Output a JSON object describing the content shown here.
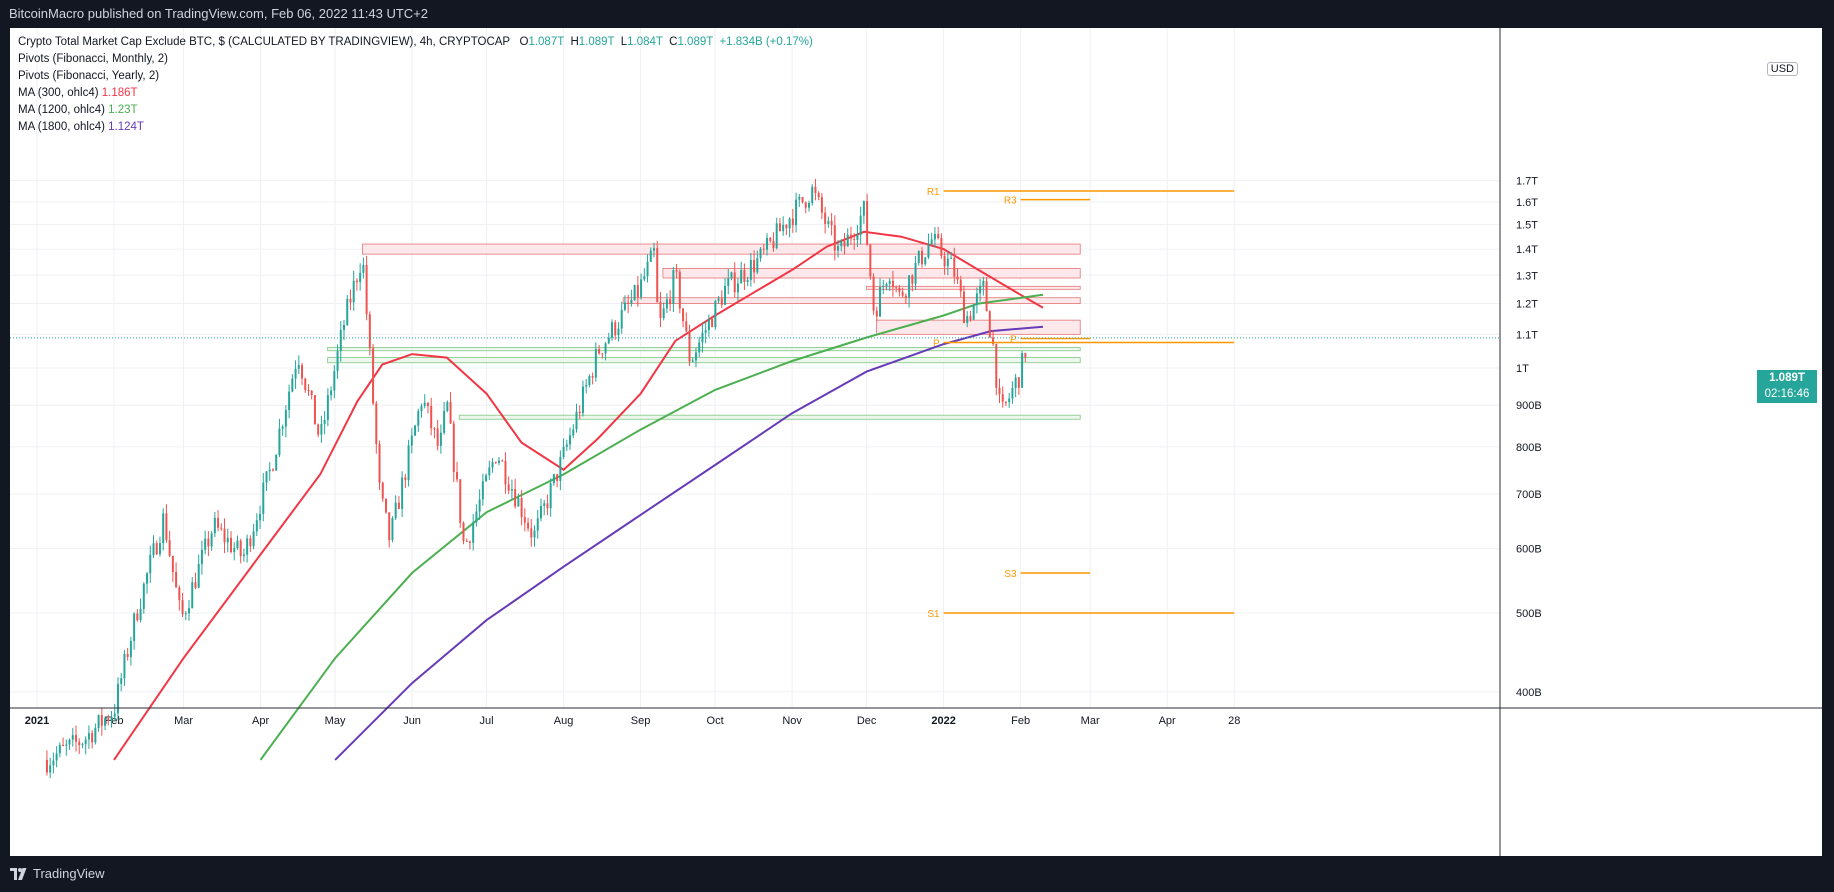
{
  "header": {
    "publisher_line": "BitcoinMacro published on TradingView.com, Feb 06, 2022 11:43 UTC+2"
  },
  "footer": {
    "logo_text": "TradingView"
  },
  "legend": {
    "symbol": "Crypto Total Market Cap Exclude BTC, $ (CALCULATED BY TRADINGVIEW), 4h, CRYPTOCAP",
    "ohlc": {
      "o_label": "O",
      "o": "1.087T",
      "h_label": "H",
      "h": "1.089T",
      "l_label": "L",
      "l": "1.084T",
      "c_label": "C",
      "c": "1.089T",
      "change": "+1.834B (+0.17%)"
    },
    "indicators": [
      {
        "name": "Pivots (Fibonacci, Monthly, 2)",
        "value": ""
      },
      {
        "name": "Pivots (Fibonacci, Yearly, 2)",
        "value": ""
      },
      {
        "name": "MA (300, ohlc4)",
        "value": "1.186T",
        "color": "#f23645"
      },
      {
        "name": "MA (1200, ohlc4)",
        "value": "1.23T",
        "color": "#4caf50"
      },
      {
        "name": "MA (1800, ohlc4)",
        "value": "1.124T",
        "color": "#673ab7"
      }
    ]
  },
  "scale": {
    "currency": "USD",
    "last_price": "1.089T",
    "countdown": "02:16:46"
  },
  "colors": {
    "up": "#26a69a",
    "down": "#ef5350",
    "ma300": "#f23645",
    "ma1200": "#4caf50",
    "ma1800": "#673ab7",
    "pivot": "#ff9800",
    "resistance_zone_fill": "#fce4e6",
    "resistance_zone_stroke": "#e57373",
    "support_zone_fill": "#e8f5e9",
    "support_zone_stroke": "#81c784"
  },
  "chart_data": {
    "type": "candlestick",
    "title": "Crypto Total Market Cap Exclude BTC, $ (CALCULATED BY TRADINGVIEW), 4h, CRYPTOCAP",
    "xlabel": "",
    "ylabel": "",
    "y_scale": "log",
    "ylim": [
      "330B",
      "1.75T"
    ],
    "y_ticks": [
      "400B",
      "500B",
      "600B",
      "700B",
      "800B",
      "900B",
      "1T",
      "1.1T",
      "1.2T",
      "1.3T",
      "1.4T",
      "1.5T",
      "1.6T",
      "1.7T"
    ],
    "y_tick_values": [
      400,
      500,
      600,
      700,
      800,
      900,
      1000,
      1100,
      1200,
      1300,
      1400,
      1500,
      1600,
      1700
    ],
    "x_ticks": [
      "2021",
      "Feb",
      "Mar",
      "Apr",
      "May",
      "Jun",
      "Jul",
      "Aug",
      "Sep",
      "Oct",
      "Nov",
      "Dec",
      "2022",
      "Feb",
      "Mar",
      "Apr",
      "28"
    ],
    "x_tick_dates": [
      "2021-01-01",
      "2021-02-01",
      "2021-03-01",
      "2021-04-01",
      "2021-05-01",
      "2021-06-01",
      "2021-07-01",
      "2021-08-01",
      "2021-09-01",
      "2021-10-01",
      "2021-11-01",
      "2021-12-01",
      "2022-01-01",
      "2022-02-01",
      "2022-03-01",
      "2022-04-01",
      "2022-04-28"
    ],
    "grid": true,
    "price_path": [
      [
        "2021-01-05",
        330
      ],
      [
        "2021-01-20",
        350
      ],
      [
        "2021-02-01",
        380
      ],
      [
        "2021-02-10",
        500
      ],
      [
        "2021-02-21",
        655
      ],
      [
        "2021-02-28",
        490
      ],
      [
        "2021-03-13",
        640
      ],
      [
        "2021-03-25",
        585
      ],
      [
        "2021-04-05",
        750
      ],
      [
        "2021-04-16",
        1045
      ],
      [
        "2021-04-25",
        815
      ],
      [
        "2021-05-05",
        1150
      ],
      [
        "2021-05-12",
        1378
      ],
      [
        "2021-05-19",
        700
      ],
      [
        "2021-05-23",
        615
      ],
      [
        "2021-06-05",
        920
      ],
      [
        "2021-06-12",
        790
      ],
      [
        "2021-06-15",
        905
      ],
      [
        "2021-06-22",
        600
      ],
      [
        "2021-07-05",
        790
      ],
      [
        "2021-07-20",
        620
      ],
      [
        "2021-08-01",
        780
      ],
      [
        "2021-08-15",
        1050
      ],
      [
        "2021-08-31",
        1240
      ],
      [
        "2021-09-07",
        1395
      ],
      [
        "2021-09-08",
        1110
      ],
      [
        "2021-09-15",
        1300
      ],
      [
        "2021-09-21",
        1020
      ],
      [
        "2021-10-05",
        1250
      ],
      [
        "2021-10-20",
        1370
      ],
      [
        "2021-10-30",
        1520
      ],
      [
        "2021-11-09",
        1655
      ],
      [
        "2021-11-16",
        1470
      ],
      [
        "2021-11-20",
        1380
      ],
      [
        "2021-11-30",
        1560
      ],
      [
        "2021-12-04",
        1170
      ],
      [
        "2021-12-10",
        1330
      ],
      [
        "2021-12-14",
        1220
      ],
      [
        "2021-12-27",
        1440
      ],
      [
        "2022-01-05",
        1320
      ],
      [
        "2022-01-10",
        1150
      ],
      [
        "2022-01-17",
        1250
      ],
      [
        "2022-01-21",
        1060
      ],
      [
        "2022-01-24",
        870
      ],
      [
        "2022-02-01",
        990
      ],
      [
        "2022-02-04",
        1089
      ]
    ],
    "series": [
      {
        "name": "MA (300, ohlc4)",
        "color": "#f23645",
        "last": "1.186T",
        "points": [
          [
            "2021-02-01",
            330
          ],
          [
            "2021-03-01",
            440
          ],
          [
            "2021-04-01",
            590
          ],
          [
            "2021-04-25",
            740
          ],
          [
            "2021-05-10",
            910
          ],
          [
            "2021-05-20",
            1010
          ],
          [
            "2021-06-01",
            1040
          ],
          [
            "2021-06-15",
            1030
          ],
          [
            "2021-07-01",
            930
          ],
          [
            "2021-07-15",
            810
          ],
          [
            "2021-08-01",
            750
          ],
          [
            "2021-08-15",
            820
          ],
          [
            "2021-09-01",
            930
          ],
          [
            "2021-09-15",
            1080
          ],
          [
            "2021-10-01",
            1160
          ],
          [
            "2021-10-15",
            1230
          ],
          [
            "2021-11-01",
            1320
          ],
          [
            "2021-11-15",
            1410
          ],
          [
            "2021-11-30",
            1470
          ],
          [
            "2021-12-15",
            1450
          ],
          [
            "2022-01-01",
            1400
          ],
          [
            "2022-01-15",
            1320
          ],
          [
            "2022-02-01",
            1230
          ],
          [
            "2022-02-10",
            1186
          ]
        ]
      },
      {
        "name": "MA (1200, ohlc4)",
        "color": "#4caf50",
        "last": "1.23T",
        "points": [
          [
            "2021-04-01",
            330
          ],
          [
            "2021-05-01",
            440
          ],
          [
            "2021-06-01",
            560
          ],
          [
            "2021-07-01",
            665
          ],
          [
            "2021-08-01",
            740
          ],
          [
            "2021-09-01",
            840
          ],
          [
            "2021-10-01",
            940
          ],
          [
            "2021-11-01",
            1020
          ],
          [
            "2021-12-01",
            1090
          ],
          [
            "2022-01-01",
            1160
          ],
          [
            "2022-01-15",
            1200
          ],
          [
            "2022-02-10",
            1230
          ]
        ]
      },
      {
        "name": "MA (1800, ohlc4)",
        "color": "#673ab7",
        "last": "1.124T",
        "points": [
          [
            "2021-05-01",
            330
          ],
          [
            "2021-06-01",
            410
          ],
          [
            "2021-07-01",
            490
          ],
          [
            "2021-08-01",
            570
          ],
          [
            "2021-09-01",
            660
          ],
          [
            "2021-10-01",
            760
          ],
          [
            "2021-11-01",
            880
          ],
          [
            "2021-12-01",
            990
          ],
          [
            "2022-01-01",
            1070
          ],
          [
            "2022-01-20",
            1110
          ],
          [
            "2022-02-10",
            1124
          ]
        ]
      }
    ],
    "pivots": [
      {
        "label": "R1",
        "value": 1650,
        "from": "2022-01-01",
        "to": "2022-04-28"
      },
      {
        "label": "R3",
        "value": 1610,
        "from": "2022-02-01",
        "to": "2022-03-01"
      },
      {
        "label": "P",
        "value": 1087,
        "from": "2022-02-01",
        "to": "2022-03-01"
      },
      {
        "label": "P",
        "value": 1075,
        "from": "2022-01-01",
        "to": "2022-04-28"
      },
      {
        "label": "S3",
        "value": 560,
        "from": "2022-02-01",
        "to": "2022-03-01"
      },
      {
        "label": "S1",
        "value": 500,
        "from": "2022-01-01",
        "to": "2022-04-28"
      }
    ],
    "zones": [
      {
        "kind": "resistance",
        "from": "2021-05-12",
        "to": "2022-02-25",
        "low": 1380,
        "high": 1420
      },
      {
        "kind": "resistance",
        "from": "2021-09-10",
        "to": "2022-02-25",
        "low": 1290,
        "high": 1325
      },
      {
        "kind": "resistance",
        "from": "2021-12-01",
        "to": "2022-02-25",
        "low": 1250,
        "high": 1260
      },
      {
        "kind": "resistance",
        "from": "2021-08-25",
        "to": "2022-02-25",
        "low": 1200,
        "high": 1220
      },
      {
        "kind": "resistance",
        "from": "2021-12-05",
        "to": "2022-02-25",
        "low": 1100,
        "high": 1145
      },
      {
        "kind": "support",
        "from": "2021-04-28",
        "to": "2022-02-25",
        "low": 1050,
        "high": 1060
      },
      {
        "kind": "support",
        "from": "2021-04-28",
        "to": "2022-02-25",
        "low": 1015,
        "high": 1030
      },
      {
        "kind": "support",
        "from": "2021-06-20",
        "to": "2022-02-25",
        "low": 865,
        "high": 875
      }
    ]
  }
}
